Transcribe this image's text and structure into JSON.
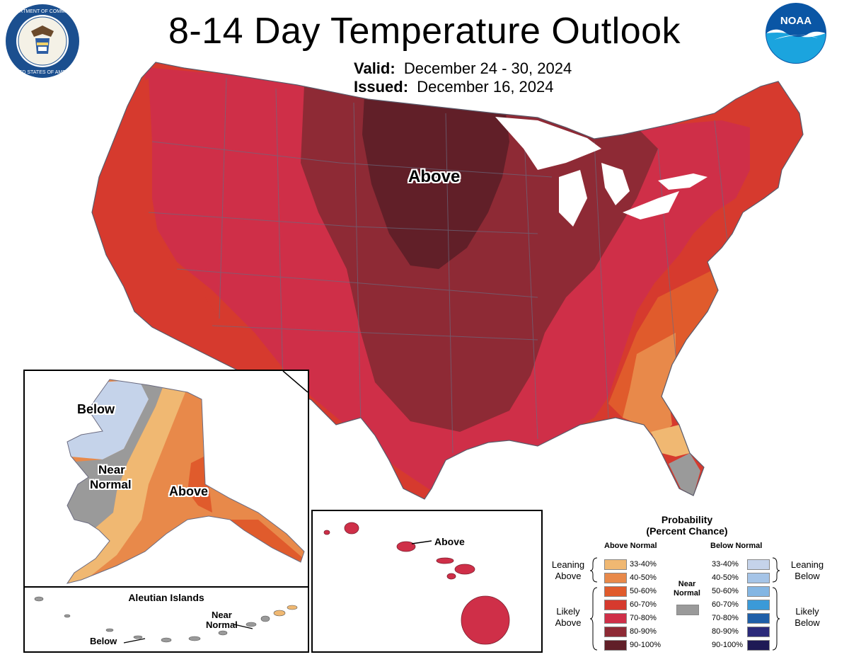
{
  "header": {
    "title": "8-14 Day Temperature Outlook",
    "valid_label": "Valid:",
    "valid_value": "December 24 - 30, 2024",
    "issued_label": "Issued:",
    "issued_value": "December 16, 2024"
  },
  "logos": {
    "left": "Department of Commerce seal",
    "left_text": "DEPARTMENT OF COMMERCE · UNITED STATES OF AMERICA",
    "right_text": "NOAA"
  },
  "map": {
    "main_label": "Above",
    "alaska_labels": {
      "below": "Below",
      "near_1": "Near",
      "near_2": "Normal",
      "above": "Above"
    },
    "aleutian_title": "Aleutian Islands",
    "aleutian_labels": {
      "near_1": "Near",
      "near_2": "Normal",
      "below": "Below"
    },
    "hawaii_label": "Above"
  },
  "colors": {
    "above_33_40": "#f0b872",
    "above_40_50": "#e8894a",
    "above_50_60": "#e05b2c",
    "above_60_70": "#d63a2e",
    "above_70_80": "#cf2f48",
    "above_80_90": "#8e2a35",
    "above_90_100": "#611f28",
    "near_normal": "#9a9a9a",
    "below_33_40": "#c5d3ea",
    "below_40_50": "#a5c4e7",
    "below_50_60": "#84b6e3",
    "below_60_70": "#3b9ad8",
    "below_70_80": "#1f5fa8",
    "below_80_90": "#2b2a7a",
    "below_90_100": "#1e1a55",
    "lakes": "#ffffff",
    "borders": "#6b6b80"
  },
  "legend": {
    "title_1": "Probability",
    "title_2": "(Percent Chance)",
    "above_header": "Above Normal",
    "below_header": "Below Normal",
    "near_header_1": "Near",
    "near_header_2": "Normal",
    "leaning_above_1": "Leaning",
    "leaning_above_2": "Above",
    "likely_above_1": "Likely",
    "likely_above_2": "Above",
    "leaning_below_1": "Leaning",
    "leaning_below_2": "Below",
    "likely_below_1": "Likely",
    "likely_below_2": "Below",
    "ranges": [
      "33-40%",
      "40-50%",
      "50-60%",
      "60-70%",
      "70-80%",
      "80-90%",
      "90-100%"
    ]
  }
}
